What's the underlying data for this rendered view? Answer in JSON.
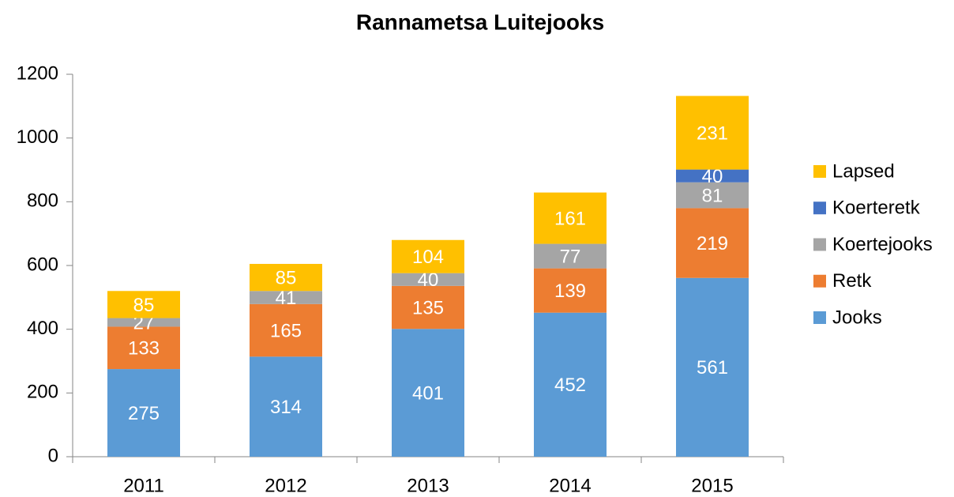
{
  "chart_data": {
    "type": "stacked_bar",
    "title": "Rannametsa Luitejooks",
    "categories": [
      "2011",
      "2012",
      "2013",
      "2014",
      "2015"
    ],
    "series": [
      {
        "name": "Jooks",
        "color": "#5b9bd5",
        "values": [
          275,
          314,
          401,
          452,
          561
        ]
      },
      {
        "name": "Retk",
        "color": "#ed7d31",
        "values": [
          133,
          165,
          135,
          139,
          219
        ]
      },
      {
        "name": "Koertejooks",
        "color": "#a5a5a5",
        "values": [
          27,
          41,
          40,
          77,
          81
        ]
      },
      {
        "name": "Koerteretk",
        "color": "#4472c4",
        "values": [
          null,
          null,
          null,
          null,
          40
        ]
      },
      {
        "name": "Lapsed",
        "color": "#ffc000",
        "values": [
          85,
          85,
          104,
          161,
          231
        ]
      }
    ],
    "ylim": [
      0,
      1200
    ],
    "yticks": [
      0,
      200,
      400,
      600,
      800,
      1000,
      1200
    ],
    "grid": false,
    "legend": "right",
    "data_labels": true
  }
}
